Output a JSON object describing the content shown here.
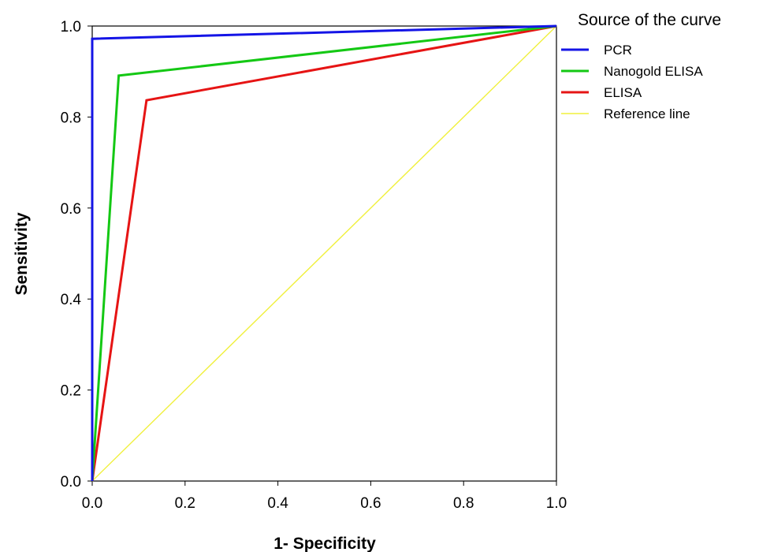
{
  "chart_data": {
    "type": "line",
    "title": "",
    "xlabel": "1- Specificity",
    "ylabel": "Sensitivity",
    "xlim": [
      0,
      1
    ],
    "ylim": [
      0,
      1
    ],
    "xticks": [
      "0.0",
      "0.2",
      "0.4",
      "0.6",
      "0.8",
      "1.0"
    ],
    "yticks": [
      "0.0",
      "0.2",
      "0.4",
      "0.6",
      "0.8",
      "1.0"
    ],
    "grid": false,
    "legend": {
      "title": "Source of the curve",
      "placement": "top-right"
    },
    "series": [
      {
        "name": "PCR",
        "color": "#1414e6",
        "x": [
          0,
          0,
          1
        ],
        "y": [
          0,
          0.972,
          1
        ]
      },
      {
        "name": "Nanogold ELISA",
        "color": "#14c814",
        "x": [
          0,
          0.057,
          1
        ],
        "y": [
          0,
          0.891,
          1
        ]
      },
      {
        "name": "ELISA",
        "color": "#e61414",
        "x": [
          0,
          0.117,
          1
        ],
        "y": [
          0,
          0.837,
          1
        ]
      },
      {
        "name": "Reference line",
        "color": "#f0f03c",
        "x": [
          0,
          1
        ],
        "y": [
          0,
          1
        ]
      }
    ]
  }
}
